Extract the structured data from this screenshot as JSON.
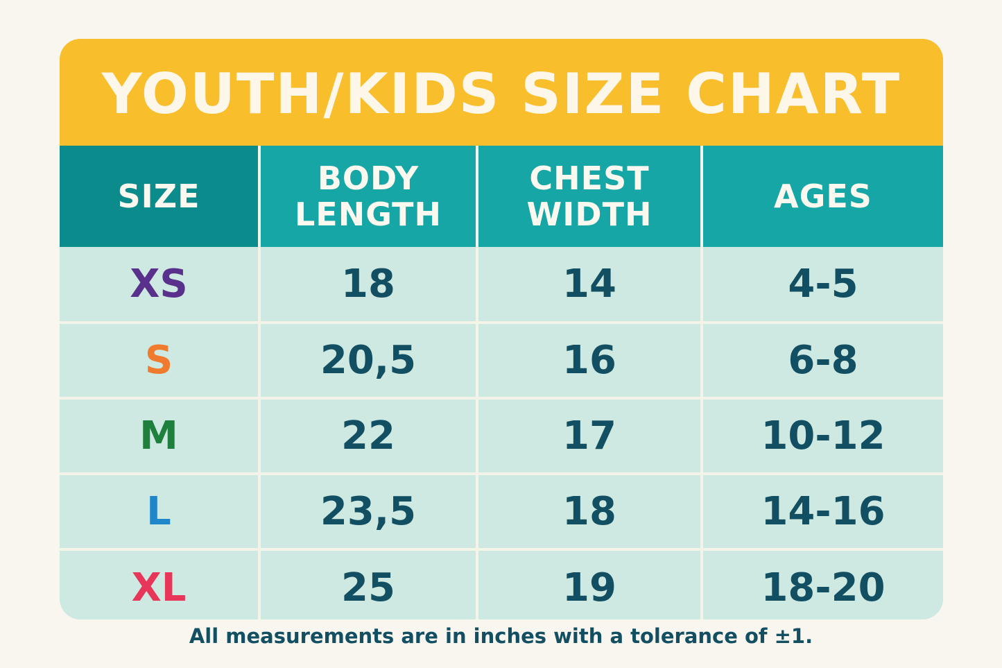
{
  "title": "YOUTH/KIDS SIZE CHART",
  "headers": {
    "size": "SIZE",
    "body_length_line1": "BODY",
    "body_length_line2": "LENGTH",
    "chest_width_line1": "CHEST",
    "chest_width_line2": "WIDTH",
    "ages": "AGES"
  },
  "rows": [
    {
      "size": "XS",
      "size_color": "#59318d",
      "body_length": "18",
      "chest_width": "14",
      "ages": "4-5"
    },
    {
      "size": "S",
      "size_color": "#f07b2e",
      "body_length": "20,5",
      "chest_width": "16",
      "ages": "6-8"
    },
    {
      "size": "M",
      "size_color": "#1f7f3c",
      "body_length": "22",
      "chest_width": "17",
      "ages": "10-12"
    },
    {
      "size": "L",
      "size_color": "#1f86c9",
      "body_length": "23,5",
      "chest_width": "18",
      "ages": "14-16"
    },
    {
      "size": "XL",
      "size_color": "#e7365a",
      "body_length": "25",
      "chest_width": "19",
      "ages": "18-20"
    }
  ],
  "footnote": "All measurements are in inches with a tolerance of ±1.",
  "colors": {
    "background": "#f8f6ee",
    "title_bar": "#f8be2c",
    "header": "#16a6a5",
    "header_dark": "#0c8b8c",
    "cell": "#cde9e1",
    "text": "#124f62"
  }
}
